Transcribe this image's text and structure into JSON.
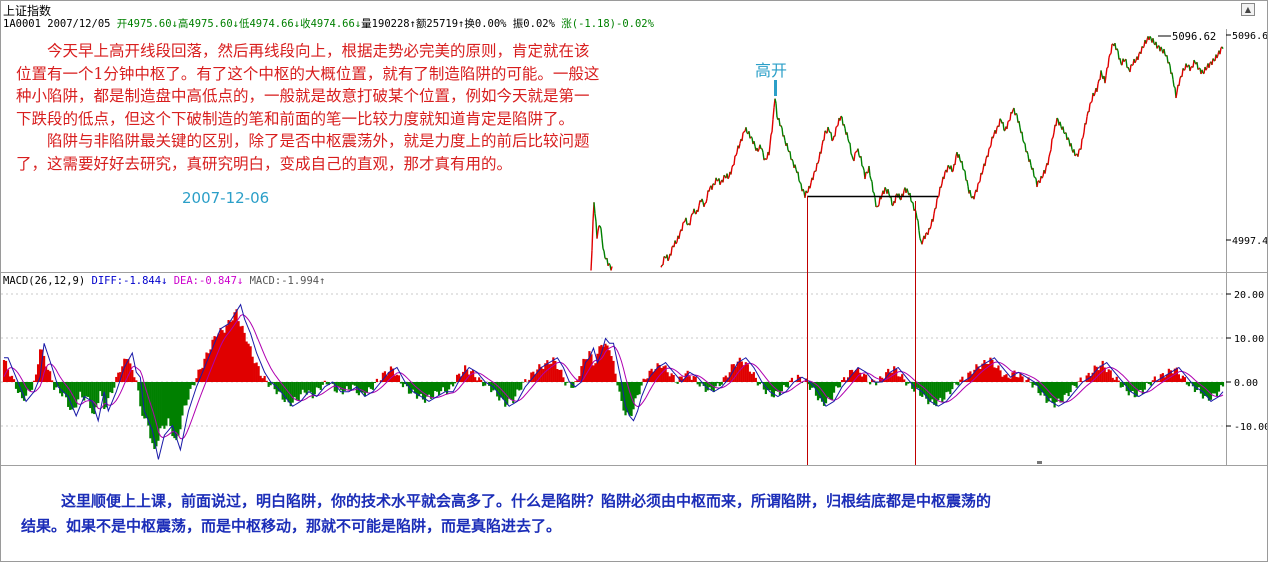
{
  "window": {
    "title": "上证指数",
    "scroll_button_icon": "triangle-up-icon"
  },
  "quote_bar": [
    {
      "text": "1A0001 2007/12/05 ",
      "color": "#000000"
    },
    {
      "text": "开4975.60",
      "color": "#008000"
    },
    {
      "text": "↓",
      "color": "#008000"
    },
    {
      "text": "高4975.60",
      "color": "#008000"
    },
    {
      "text": "↓",
      "color": "#008000"
    },
    {
      "text": "低4974.66",
      "color": "#008000"
    },
    {
      "text": "↓",
      "color": "#008000"
    },
    {
      "text": "收4974.66",
      "color": "#008000"
    },
    {
      "text": "↓",
      "color": "#008000"
    },
    {
      "text": "量190228",
      "color": "#000000"
    },
    {
      "text": "↑",
      "color": "#000000"
    },
    {
      "text": "额25719",
      "color": "#000000"
    },
    {
      "text": "↑",
      "color": "#000000"
    },
    {
      "text": "换0.00%",
      "color": "#000000"
    },
    {
      "text": " 振0.02%",
      "color": "#000000"
    },
    {
      "text": " 涨(-1.18)-0.02%",
      "color": "#008000"
    }
  ],
  "macd_bar": [
    {
      "text": "MACD(26,12,9) ",
      "color": "#000000"
    },
    {
      "text": "DIFF:-1.844",
      "color": "#0000cc"
    },
    {
      "text": "↓",
      "color": "#0000cc"
    },
    {
      "text": " DEA:-0.847",
      "color": "#cc00cc"
    },
    {
      "text": "↓",
      "color": "#cc00cc"
    },
    {
      "text": " MACD:-1.994",
      "color": "#555555"
    },
    {
      "text": "↑",
      "color": "#555555"
    }
  ],
  "annotations": {
    "main_text": [
      "　　今天早上高开线段回落，然后再线段向上，根据走势必完美的原则，肯定就在该",
      "位置有一个1分钟中枢了。有了这个中枢的大概位置，就有了制造陷阱的可能。一般这",
      "种小陷阱，都是制造盘中高低点的，一般就是故意打破某个位置，例如今天就是第一",
      "下跌段的低点，但这个下破制造的笔和前面的笔一比较力度就知道肯定是陷阱了。",
      "　　陷阱与非陷阱最关键的区别，除了是否中枢震荡外，就是力度上的前后比较问题",
      "了，这需要好好去研究，真研究明白，变成自己的直观，那才真有用的。"
    ],
    "date": "2007-12-06",
    "gaokai": "高开",
    "bottom": [
      "这里顺便上上课，前面说过，明白陷阱，你的技术水平就会高多了。什么是陷阱？陷阱必须由中枢而来，所谓陷阱，归根结底都是中枢震荡的",
      "结果。如果不是中枢震荡，而是中枢移动，那就不可能是陷阱，而是真陷进去了。"
    ]
  },
  "colors": {
    "up": "#e00000",
    "down": "#008000",
    "diff": "#1a1aa8",
    "dea": "#b000b0",
    "annotation_red": "#d81e1e",
    "annotation_cyan": "#2b9fc8",
    "note_blue": "#1b2db8"
  },
  "chart_data": [
    {
      "type": "line",
      "name": "price",
      "y_axis_labels": [
        "5096.6",
        "4997.4"
      ],
      "y_values": [
        5096.6,
        4997.4
      ],
      "peak_label": "5096.62",
      "peak_value": 5096.62
    },
    {
      "type": "bar",
      "name": "macd",
      "y_tick_labels": [
        "20.00",
        "10.00",
        "0.00",
        "-10.00"
      ],
      "y_ticks": [
        20,
        10,
        0,
        -10
      ],
      "current": {
        "DIFF": -1.844,
        "DEA": -0.847,
        "MACD": -1.994
      },
      "keypoints": [
        [
          0,
          5
        ],
        [
          2,
          3
        ],
        [
          5,
          0
        ],
        [
          9,
          -4
        ],
        [
          13,
          -2
        ],
        [
          16,
          1
        ],
        [
          18,
          8
        ],
        [
          22,
          3
        ],
        [
          25,
          -1
        ],
        [
          30,
          -3
        ],
        [
          34,
          -7
        ],
        [
          38,
          -3
        ],
        [
          42,
          -4
        ],
        [
          45,
          -8
        ],
        [
          48,
          -2
        ],
        [
          50,
          -6
        ],
        [
          54,
          -2
        ],
        [
          58,
          3
        ],
        [
          62,
          6
        ],
        [
          64,
          2
        ],
        [
          66,
          1
        ],
        [
          68,
          -6
        ],
        [
          72,
          -10
        ],
        [
          75,
          -16
        ],
        [
          78,
          -11
        ],
        [
          82,
          -9
        ],
        [
          86,
          -14
        ],
        [
          90,
          -6
        ],
        [
          94,
          -1
        ],
        [
          98,
          3
        ],
        [
          102,
          7
        ],
        [
          106,
          11
        ],
        [
          110,
          12
        ],
        [
          113,
          14
        ],
        [
          116,
          16
        ],
        [
          118,
          13
        ],
        [
          121,
          10
        ],
        [
          124,
          6
        ],
        [
          128,
          2
        ],
        [
          131,
          0
        ],
        [
          134,
          -1
        ],
        [
          138,
          -3
        ],
        [
          142,
          -5
        ],
        [
          146,
          -4
        ],
        [
          150,
          -2
        ],
        [
          154,
          -3
        ],
        [
          158,
          -1
        ],
        [
          162,
          0
        ],
        [
          166,
          -2
        ],
        [
          170,
          -2
        ],
        [
          174,
          -1
        ],
        [
          178,
          -3
        ],
        [
          182,
          -2
        ],
        [
          186,
          0
        ],
        [
          190,
          2
        ],
        [
          194,
          3
        ],
        [
          198,
          0
        ],
        [
          202,
          -2
        ],
        [
          206,
          -3
        ],
        [
          210,
          -4
        ],
        [
          214,
          -3
        ],
        [
          218,
          -2
        ],
        [
          222,
          -2
        ],
        [
          226,
          1
        ],
        [
          230,
          3
        ],
        [
          234,
          2
        ],
        [
          238,
          0
        ],
        [
          242,
          -1
        ],
        [
          246,
          -3
        ],
        [
          250,
          -5
        ],
        [
          254,
          -4
        ],
        [
          258,
          -1
        ],
        [
          262,
          1
        ],
        [
          266,
          3
        ],
        [
          270,
          4
        ],
        [
          274,
          5
        ],
        [
          277,
          3
        ],
        [
          280,
          0
        ],
        [
          283,
          -1
        ],
        [
          286,
          0
        ],
        [
          288,
          4
        ],
        [
          290,
          5
        ],
        [
          292,
          7
        ],
        [
          294,
          4
        ],
        [
          296,
          6
        ],
        [
          298,
          9
        ],
        [
          300,
          8
        ],
        [
          302,
          8
        ],
        [
          304,
          4
        ],
        [
          306,
          0
        ],
        [
          308,
          -5
        ],
        [
          310,
          -7
        ],
        [
          312,
          -8
        ],
        [
          314,
          -6
        ],
        [
          316,
          -3
        ],
        [
          320,
          1
        ],
        [
          324,
          3
        ],
        [
          328,
          4
        ],
        [
          332,
          2
        ],
        [
          336,
          0
        ],
        [
          340,
          2
        ],
        [
          344,
          1
        ],
        [
          348,
          -1
        ],
        [
          352,
          -2
        ],
        [
          356,
          -1
        ],
        [
          360,
          1
        ],
        [
          364,
          4
        ],
        [
          368,
          5
        ],
        [
          372,
          3
        ],
        [
          376,
          0
        ],
        [
          380,
          -2
        ],
        [
          384,
          -3
        ],
        [
          388,
          -2
        ],
        [
          392,
          0
        ],
        [
          396,
          1
        ],
        [
          400,
          0
        ],
        [
          404,
          -2
        ],
        [
          408,
          -5
        ],
        [
          412,
          -4
        ],
        [
          416,
          -1
        ],
        [
          420,
          1
        ],
        [
          424,
          3
        ],
        [
          428,
          2
        ],
        [
          432,
          0
        ],
        [
          436,
          0
        ],
        [
          440,
          2
        ],
        [
          444,
          3
        ],
        [
          448,
          1
        ],
        [
          452,
          -1
        ],
        [
          456,
          -2
        ],
        [
          460,
          -4
        ],
        [
          464,
          -5
        ],
        [
          468,
          -4
        ],
        [
          472,
          -2
        ],
        [
          476,
          0
        ],
        [
          480,
          1
        ],
        [
          484,
          3
        ],
        [
          488,
          4
        ],
        [
          492,
          5
        ],
        [
          496,
          3
        ],
        [
          500,
          1
        ],
        [
          504,
          2
        ],
        [
          508,
          1
        ],
        [
          512,
          0
        ],
        [
          516,
          -2
        ],
        [
          520,
          -4
        ],
        [
          524,
          -5
        ],
        [
          528,
          -4
        ],
        [
          532,
          -2
        ],
        [
          536,
          0
        ],
        [
          540,
          1
        ],
        [
          544,
          3
        ],
        [
          548,
          4
        ],
        [
          552,
          2
        ],
        [
          556,
          0
        ],
        [
          560,
          -2
        ],
        [
          564,
          -3
        ],
        [
          568,
          -2
        ],
        [
          572,
          0
        ],
        [
          576,
          1
        ],
        [
          580,
          2
        ],
        [
          584,
          3
        ],
        [
          588,
          1
        ],
        [
          592,
          -1
        ],
        [
          596,
          -2
        ],
        [
          600,
          -4
        ],
        [
          604,
          -3
        ],
        [
          608,
          -1
        ]
      ]
    }
  ],
  "price_points": [
    [
      590,
      270
    ],
    [
      593,
      200
    ],
    [
      596,
      235
    ],
    [
      599,
      222
    ],
    [
      603,
      253
    ],
    [
      607,
      262
    ],
    [
      611,
      268
    ],
    [
      660,
      268
    ],
    [
      664,
      255
    ],
    [
      668,
      258
    ],
    [
      672,
      245
    ],
    [
      676,
      240
    ],
    [
      680,
      230
    ],
    [
      684,
      218
    ],
    [
      688,
      225
    ],
    [
      692,
      210
    ],
    [
      696,
      212
    ],
    [
      700,
      198
    ],
    [
      704,
      205
    ],
    [
      708,
      188
    ],
    [
      712,
      185
    ],
    [
      716,
      178
    ],
    [
      720,
      182
    ],
    [
      724,
      175
    ],
    [
      728,
      176
    ],
    [
      732,
      165
    ],
    [
      736,
      150
    ],
    [
      740,
      140
    ],
    [
      744,
      128
    ],
    [
      748,
      133
    ],
    [
      752,
      140
    ],
    [
      756,
      150
    ],
    [
      760,
      145
    ],
    [
      764,
      160
    ],
    [
      768,
      152
    ],
    [
      772,
      120
    ],
    [
      774,
      95
    ],
    [
      776,
      115
    ],
    [
      780,
      125
    ],
    [
      784,
      140
    ],
    [
      788,
      150
    ],
    [
      792,
      162
    ],
    [
      796,
      170
    ],
    [
      800,
      185
    ],
    [
      804,
      194
    ],
    [
      808,
      188
    ],
    [
      812,
      176
    ],
    [
      816,
      165
    ],
    [
      820,
      150
    ],
    [
      824,
      132
    ],
    [
      828,
      128
    ],
    [
      832,
      140
    ],
    [
      836,
      125
    ],
    [
      840,
      115
    ],
    [
      844,
      128
    ],
    [
      848,
      140
    ],
    [
      852,
      160
    ],
    [
      856,
      148
    ],
    [
      860,
      158
    ],
    [
      864,
      175
    ],
    [
      868,
      168
    ],
    [
      872,
      188
    ],
    [
      876,
      208
    ],
    [
      880,
      196
    ],
    [
      884,
      188
    ],
    [
      888,
      192
    ],
    [
      892,
      205
    ],
    [
      896,
      193
    ],
    [
      900,
      198
    ],
    [
      904,
      188
    ],
    [
      908,
      192
    ],
    [
      912,
      204
    ],
    [
      916,
      215
    ],
    [
      920,
      243
    ],
    [
      924,
      235
    ],
    [
      928,
      230
    ],
    [
      932,
      218
    ],
    [
      936,
      200
    ],
    [
      940,
      185
    ],
    [
      944,
      172
    ],
    [
      948,
      165
    ],
    [
      952,
      170
    ],
    [
      956,
      152
    ],
    [
      960,
      160
    ],
    [
      964,
      172
    ],
    [
      968,
      190
    ],
    [
      972,
      198
    ],
    [
      976,
      188
    ],
    [
      980,
      175
    ],
    [
      984,
      162
    ],
    [
      988,
      150
    ],
    [
      992,
      135
    ],
    [
      996,
      128
    ],
    [
      1000,
      118
    ],
    [
      1004,
      130
    ],
    [
      1008,
      120
    ],
    [
      1012,
      108
    ],
    [
      1016,
      115
    ],
    [
      1020,
      130
    ],
    [
      1024,
      145
    ],
    [
      1028,
      158
    ],
    [
      1032,
      170
    ],
    [
      1036,
      183
    ],
    [
      1040,
      178
    ],
    [
      1044,
      170
    ],
    [
      1048,
      158
    ],
    [
      1052,
      135
    ],
    [
      1056,
      118
    ],
    [
      1060,
      125
    ],
    [
      1064,
      132
    ],
    [
      1068,
      140
    ],
    [
      1072,
      150
    ],
    [
      1076,
      155
    ],
    [
      1080,
      146
    ],
    [
      1084,
      125
    ],
    [
      1088,
      108
    ],
    [
      1092,
      95
    ],
    [
      1096,
      88
    ],
    [
      1100,
      72
    ],
    [
      1104,
      80
    ],
    [
      1108,
      58
    ],
    [
      1112,
      42
    ],
    [
      1116,
      48
    ],
    [
      1120,
      63
    ],
    [
      1124,
      58
    ],
    [
      1128,
      70
    ],
    [
      1132,
      62
    ],
    [
      1136,
      58
    ],
    [
      1140,
      50
    ],
    [
      1144,
      42
    ],
    [
      1148,
      36
    ],
    [
      1152,
      40
    ],
    [
      1156,
      45
    ],
    [
      1160,
      48
    ],
    [
      1164,
      52
    ],
    [
      1168,
      62
    ],
    [
      1172,
      78
    ],
    [
      1175,
      95
    ],
    [
      1178,
      82
    ],
    [
      1182,
      70
    ],
    [
      1186,
      64
    ],
    [
      1190,
      68
    ],
    [
      1194,
      60
    ],
    [
      1198,
      68
    ],
    [
      1202,
      72
    ],
    [
      1206,
      66
    ],
    [
      1210,
      62
    ],
    [
      1214,
      58
    ],
    [
      1218,
      52
    ],
    [
      1222,
      45
    ]
  ]
}
